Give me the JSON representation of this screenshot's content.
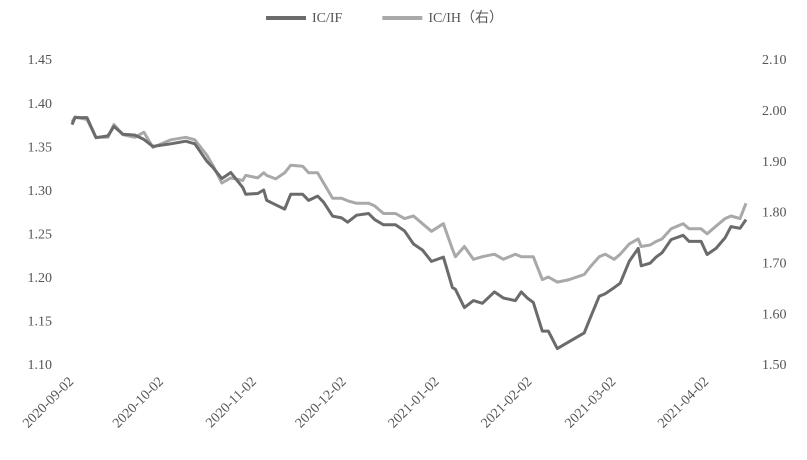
{
  "chart_data": {
    "type": "line",
    "x": [
      "2020-09-02",
      "2020-09-03",
      "2020-09-07",
      "2020-09-10",
      "2020-09-14",
      "2020-09-16",
      "2020-09-19",
      "2020-09-23",
      "2020-09-26",
      "2020-09-29",
      "2020-10-05",
      "2020-10-10",
      "2020-10-13",
      "2020-10-17",
      "2020-10-19",
      "2020-10-22",
      "2020-10-25",
      "2020-10-29",
      "2020-10-30",
      "2020-11-03",
      "2020-11-05",
      "2020-11-06",
      "2020-11-09",
      "2020-11-12",
      "2020-11-14",
      "2020-11-18",
      "2020-11-20",
      "2020-11-23",
      "2020-11-25",
      "2020-11-28",
      "2020-12-01",
      "2020-12-03",
      "2020-12-06",
      "2020-12-10",
      "2020-12-12",
      "2020-12-15",
      "2020-12-19",
      "2020-12-22",
      "2020-12-25",
      "2020-12-28",
      "2020-12-31",
      "2021-01-04",
      "2021-01-07",
      "2021-01-08",
      "2021-01-11",
      "2021-01-14",
      "2021-01-17",
      "2021-01-21",
      "2021-01-24",
      "2021-01-28",
      "2021-01-30",
      "2021-02-01",
      "2021-02-03",
      "2021-02-06",
      "2021-02-08",
      "2021-02-11",
      "2021-02-15",
      "2021-02-20",
      "2021-02-22",
      "2021-02-25",
      "2021-02-27",
      "2021-03-02",
      "2021-03-04",
      "2021-03-07",
      "2021-03-10",
      "2021-03-11",
      "2021-03-14",
      "2021-03-16",
      "2021-03-18",
      "2021-03-21",
      "2021-03-25",
      "2021-03-27",
      "2021-03-31",
      "2021-04-02",
      "2021-04-05",
      "2021-04-08",
      "2021-04-10",
      "2021-04-13",
      "2021-04-15"
    ],
    "series": [
      {
        "name": "IC/IF",
        "color": "#6b6b6b",
        "axis": "y",
        "values": [
          1.377,
          1.385,
          1.385,
          1.362,
          1.364,
          1.375,
          1.366,
          1.365,
          1.36,
          1.352,
          1.355,
          1.358,
          1.355,
          1.335,
          1.328,
          1.315,
          1.322,
          1.305,
          1.297,
          1.298,
          1.302,
          1.29,
          1.285,
          1.28,
          1.297,
          1.297,
          1.29,
          1.295,
          1.288,
          1.272,
          1.27,
          1.265,
          1.273,
          1.275,
          1.268,
          1.262,
          1.262,
          1.255,
          1.24,
          1.233,
          1.22,
          1.225,
          1.19,
          1.188,
          1.167,
          1.175,
          1.172,
          1.185,
          1.178,
          1.175,
          1.185,
          1.178,
          1.173,
          1.14,
          1.14,
          1.12,
          1.128,
          1.138,
          1.155,
          1.18,
          1.183,
          1.19,
          1.195,
          1.22,
          1.235,
          1.215,
          1.218,
          1.225,
          1.23,
          1.245,
          1.25,
          1.243,
          1.243,
          1.228,
          1.235,
          1.247,
          1.26,
          1.258,
          1.268
        ]
      },
      {
        "name": "IC/IH（右）",
        "color": "#a9a9a9",
        "axis": "y2",
        "values": [
          1.98,
          1.99,
          1.985,
          1.95,
          1.95,
          1.975,
          1.955,
          1.95,
          1.96,
          1.93,
          1.945,
          1.95,
          1.945,
          1.915,
          1.895,
          1.86,
          1.87,
          1.865,
          1.875,
          1.87,
          1.88,
          1.875,
          1.868,
          1.88,
          1.895,
          1.893,
          1.88,
          1.88,
          1.86,
          1.83,
          1.83,
          1.825,
          1.82,
          1.82,
          1.815,
          1.8,
          1.8,
          1.79,
          1.795,
          1.78,
          1.765,
          1.78,
          1.73,
          1.715,
          1.735,
          1.71,
          1.715,
          1.72,
          1.71,
          1.72,
          1.715,
          1.715,
          1.715,
          1.67,
          1.675,
          1.665,
          1.67,
          1.68,
          1.695,
          1.715,
          1.72,
          1.71,
          1.72,
          1.74,
          1.75,
          1.735,
          1.738,
          1.745,
          1.75,
          1.77,
          1.78,
          1.77,
          1.77,
          1.76,
          1.775,
          1.79,
          1.795,
          1.79,
          1.82
        ]
      }
    ],
    "xlim": [
      "2020-09-02",
      "2021-04-15"
    ],
    "xticks": [
      "2020-09-02",
      "2020-10-02",
      "2020-11-02",
      "2020-12-02",
      "2021-01-02",
      "2021-02-02",
      "2021-03-02",
      "2021-04-02"
    ],
    "ylim": [
      1.1,
      1.45
    ],
    "yticks": [
      {
        "value": 1.1,
        "label": "1.10"
      },
      1.15,
      {
        "value": 1.2,
        "label": "1.20"
      },
      1.25,
      {
        "value": 1.3,
        "label": "1.30"
      },
      1.35,
      {
        "value": 1.4,
        "label": "1.40"
      },
      1.45
    ],
    "y2lim": [
      1.5,
      2.1
    ],
    "y2ticks": [
      {
        "value": 1.5,
        "label": "1.50"
      },
      {
        "value": 1.6,
        "label": "1.60"
      },
      {
        "value": 1.7,
        "label": "1.70"
      },
      {
        "value": 1.8,
        "label": "1.80"
      },
      {
        "value": 1.9,
        "label": "1.90"
      },
      {
        "value": 2.0,
        "label": "2.00"
      },
      {
        "value": 2.1,
        "label": "2.10"
      }
    ],
    "legend": "top"
  }
}
